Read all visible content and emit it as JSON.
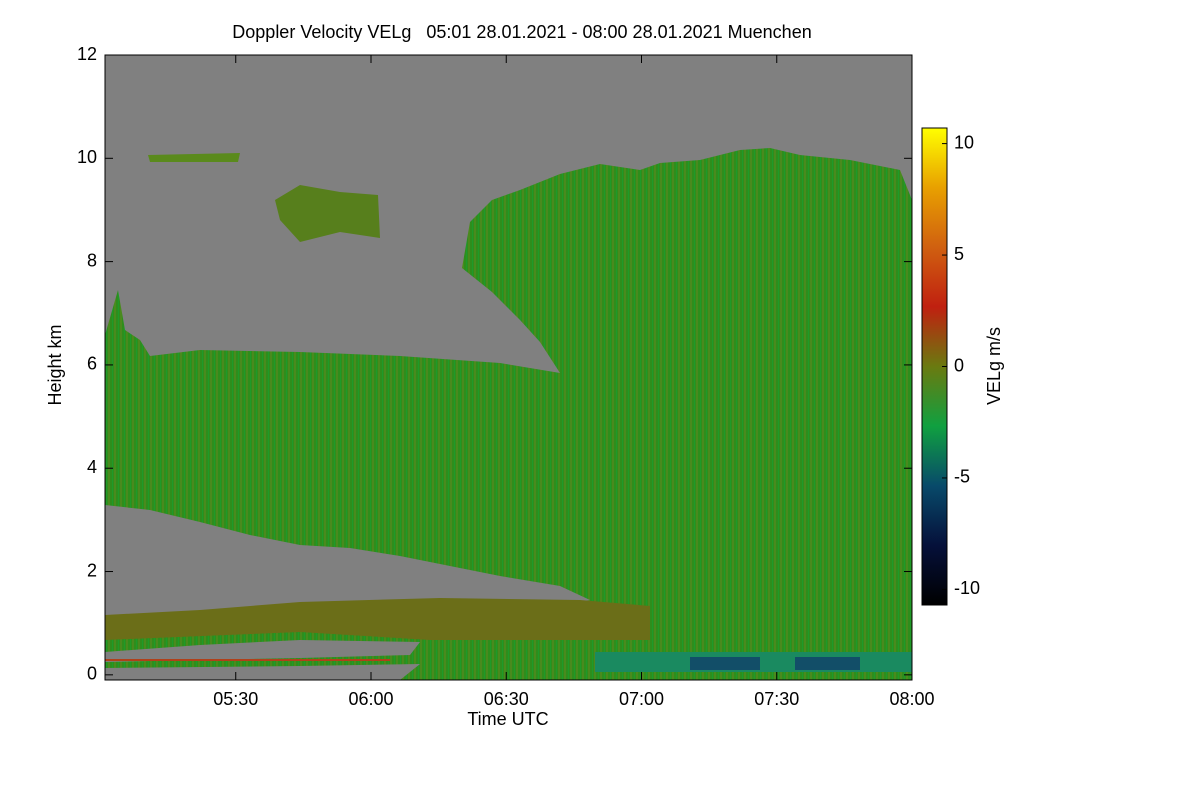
{
  "chart_data": {
    "type": "heatmap",
    "title": "Doppler Velocity VELg   05:01 28.01.2021 - 08:00 28.01.2021 Muenchen",
    "x_label": "Time UTC",
    "y_label": "Height km",
    "xlim": [
      301,
      480
    ],
    "xticks": [
      {
        "value": 330,
        "label": "05:30"
      },
      {
        "value": 360,
        "label": "06:00"
      },
      {
        "value": 390,
        "label": "06:30"
      },
      {
        "value": 420,
        "label": "07:00"
      },
      {
        "value": 450,
        "label": "07:30"
      },
      {
        "value": 480,
        "label": "08:00"
      }
    ],
    "ylim": [
      -0.1,
      12
    ],
    "yticks": [
      0,
      2,
      4,
      6,
      8,
      10,
      12
    ],
    "colorbar": {
      "label": "VELg m/s",
      "zlim": [
        -10.7,
        10.7
      ],
      "ticks": [
        -10,
        -5,
        0,
        5,
        10
      ],
      "colormap": [
        "#000000",
        "#05103a",
        "#084a6a",
        "#10a040",
        "#6a7a10",
        "#c02010",
        "#d06010",
        "#e8a000",
        "#ffff00"
      ]
    },
    "background": "#808080"
  }
}
